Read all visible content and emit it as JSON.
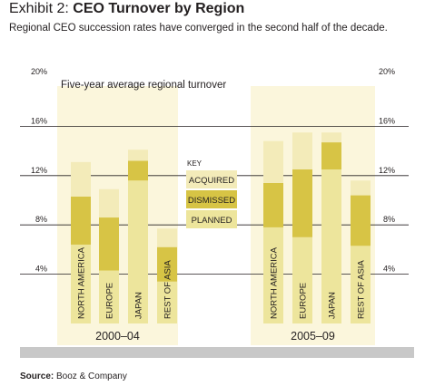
{
  "header": {
    "title_prefix": "Exhibit 2:",
    "title_main": "CEO Turnover by Region",
    "subtitle": "Regional CEO succession rates have converged in the second half of the decade."
  },
  "footer": {
    "source_label": "Source:",
    "source_text": "Booz & Company"
  },
  "colors": {
    "panel_bg": "#fbf6dc",
    "acquired": "#f3ebb9",
    "dismissed": "#d7c445",
    "planned": "#ede59c",
    "gridline": "#231f20",
    "footer_bar": "#c8c8c8"
  },
  "chart_data": {
    "type": "bar",
    "stacked": true,
    "title": "Five-year average regional turnover",
    "ylim": [
      0,
      20
    ],
    "yticks": [
      4,
      8,
      12,
      16,
      20
    ],
    "ytick_labels": [
      "4%",
      "8%",
      "12%",
      "16%",
      "20%"
    ],
    "legend": {
      "title": "KEY",
      "position": "center",
      "items": [
        "ACQUIRED",
        "DISMISSED",
        "PLANNED"
      ]
    },
    "stack_order_bottom_to_top": [
      "planned",
      "dismissed",
      "acquired"
    ],
    "panels": [
      {
        "label": "2000–04",
        "categories": [
          "NORTH AMERICA",
          "EUROPE",
          "JAPAN",
          "REST OF ASIA"
        ],
        "series": [
          {
            "name": "PLANNED",
            "values": [
              6.4,
              4.3,
              11.6,
              3.4
            ]
          },
          {
            "name": "DISMISSED",
            "values": [
              3.9,
              4.3,
              1.6,
              2.8
            ]
          },
          {
            "name": "ACQUIRED",
            "values": [
              2.8,
              2.3,
              0.9,
              1.5
            ]
          }
        ]
      },
      {
        "label": "2005–09",
        "categories": [
          "NORTH AMERICA",
          "EUROPE",
          "JAPAN",
          "REST OF ASIA"
        ],
        "series": [
          {
            "name": "PLANNED",
            "values": [
              7.8,
              7.0,
              12.5,
              6.3
            ]
          },
          {
            "name": "DISMISSED",
            "values": [
              3.6,
              5.5,
              2.2,
              4.1
            ]
          },
          {
            "name": "ACQUIRED",
            "values": [
              3.4,
              3.0,
              0.8,
              1.2
            ]
          }
        ]
      }
    ]
  }
}
